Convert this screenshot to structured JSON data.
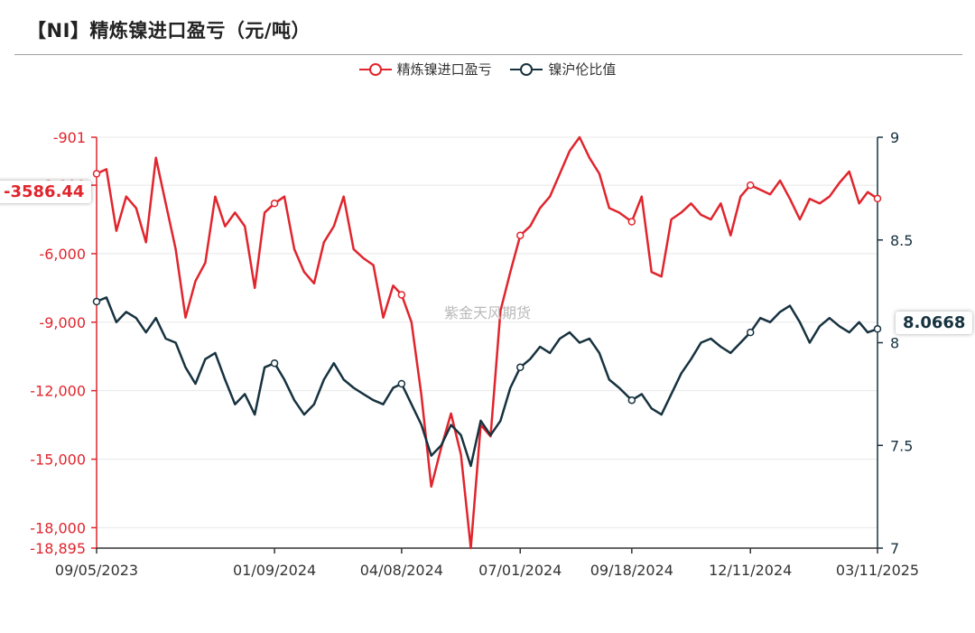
{
  "title": "【NI】精炼镍进口盈亏（元/吨）",
  "watermark": "紫金天风期货",
  "colors": {
    "profit": "#e0252d",
    "ratio": "#17323f",
    "grid": "#e8e8e8",
    "axis": "#333333"
  },
  "chart_data": {
    "type": "line",
    "x_range": [
      "2023-09-05",
      "2025-03-11"
    ],
    "x_ticks": [
      "09/05/2023",
      "01/09/2024",
      "04/08/2024",
      "07/01/2024",
      "09/18/2024",
      "12/11/2024",
      "03/11/2025"
    ],
    "y_left": {
      "min": -18895,
      "max": -901,
      "ticks": [
        -901,
        -3000,
        -6000,
        -9000,
        -12000,
        -15000,
        -18000,
        -18895
      ],
      "tick_labels": [
        "-901",
        "-3,000",
        "-6,000",
        "-9,000",
        "-12,000",
        "-15,000",
        "-18,000",
        "-18,895"
      ]
    },
    "y_right": {
      "min": 7,
      "max": 9,
      "ticks": [
        7,
        7.5,
        8,
        8.5,
        9
      ],
      "tick_labels": [
        "7",
        "7.5",
        "8",
        "8.5",
        "9"
      ]
    },
    "grid": true,
    "legend_position": "top-center",
    "series": [
      {
        "name": "精炼镍进口盈亏",
        "axis": "left",
        "color": "#e0252d",
        "current_label": "-3586.44",
        "points": [
          [
            "2023-09-05",
            -2500
          ],
          [
            "2023-09-12",
            -2300
          ],
          [
            "2023-09-19",
            -5000
          ],
          [
            "2023-09-26",
            -3500
          ],
          [
            "2023-10-03",
            -4000
          ],
          [
            "2023-10-10",
            -5500
          ],
          [
            "2023-10-17",
            -1800
          ],
          [
            "2023-10-24",
            -3800
          ],
          [
            "2023-10-31",
            -5800
          ],
          [
            "2023-11-07",
            -8800
          ],
          [
            "2023-11-14",
            -7200
          ],
          [
            "2023-11-21",
            -6400
          ],
          [
            "2023-11-28",
            -3500
          ],
          [
            "2023-12-05",
            -4800
          ],
          [
            "2023-12-12",
            -4200
          ],
          [
            "2023-12-19",
            -4800
          ],
          [
            "2023-12-26",
            -7500
          ],
          [
            "2024-01-02",
            -4200
          ],
          [
            "2024-01-09",
            -3800
          ],
          [
            "2024-01-16",
            -3500
          ],
          [
            "2024-01-23",
            -5800
          ],
          [
            "2024-01-30",
            -6800
          ],
          [
            "2024-02-06",
            -7300
          ],
          [
            "2024-02-13",
            -5500
          ],
          [
            "2024-02-20",
            -4800
          ],
          [
            "2024-02-27",
            -3500
          ],
          [
            "2024-03-05",
            -5800
          ],
          [
            "2024-03-12",
            -6200
          ],
          [
            "2024-03-19",
            -6500
          ],
          [
            "2024-03-26",
            -8800
          ],
          [
            "2024-04-02",
            -7400
          ],
          [
            "2024-04-08",
            -7800
          ],
          [
            "2024-04-15",
            -9000
          ],
          [
            "2024-04-22",
            -12200
          ],
          [
            "2024-04-29",
            -16200
          ],
          [
            "2024-05-06",
            -14500
          ],
          [
            "2024-05-13",
            -13000
          ],
          [
            "2024-05-20",
            -14800
          ],
          [
            "2024-05-27",
            -18895
          ],
          [
            "2024-06-03",
            -13500
          ],
          [
            "2024-06-10",
            -14000
          ],
          [
            "2024-06-17",
            -8500
          ],
          [
            "2024-06-24",
            -6800
          ],
          [
            "2024-07-01",
            -5200
          ],
          [
            "2024-07-08",
            -4800
          ],
          [
            "2024-07-15",
            -4000
          ],
          [
            "2024-07-22",
            -3500
          ],
          [
            "2024-07-29",
            -2500
          ],
          [
            "2024-08-05",
            -1500
          ],
          [
            "2024-08-12",
            -901
          ],
          [
            "2024-08-19",
            -1800
          ],
          [
            "2024-08-26",
            -2500
          ],
          [
            "2024-09-02",
            -4000
          ],
          [
            "2024-09-09",
            -4200
          ],
          [
            "2024-09-18",
            -4600
          ],
          [
            "2024-09-25",
            -3500
          ],
          [
            "2024-10-02",
            -6800
          ],
          [
            "2024-10-09",
            -7000
          ],
          [
            "2024-10-16",
            -4500
          ],
          [
            "2024-10-23",
            -4200
          ],
          [
            "2024-10-30",
            -3800
          ],
          [
            "2024-11-06",
            -4300
          ],
          [
            "2024-11-13",
            -4500
          ],
          [
            "2024-11-20",
            -3800
          ],
          [
            "2024-11-27",
            -5200
          ],
          [
            "2024-12-04",
            -3500
          ],
          [
            "2024-12-11",
            -3000
          ],
          [
            "2024-12-18",
            -3200
          ],
          [
            "2024-12-25",
            -3400
          ],
          [
            "2025-01-01",
            -2800
          ],
          [
            "2025-01-08",
            -3600
          ],
          [
            "2025-01-15",
            -4500
          ],
          [
            "2025-01-22",
            -3600
          ],
          [
            "2025-01-29",
            -3800
          ],
          [
            "2025-02-05",
            -3500
          ],
          [
            "2025-02-12",
            -2900
          ],
          [
            "2025-02-19",
            -2400
          ],
          [
            "2025-02-26",
            -3800
          ],
          [
            "2025-03-04",
            -3300
          ],
          [
            "2025-03-11",
            -3586.44
          ]
        ]
      },
      {
        "name": "镍沪伦比值",
        "axis": "right",
        "color": "#17323f",
        "current_label": "8.0668",
        "points": [
          [
            "2023-09-05",
            8.2
          ],
          [
            "2023-09-12",
            8.22
          ],
          [
            "2023-09-19",
            8.1
          ],
          [
            "2023-09-26",
            8.15
          ],
          [
            "2023-10-03",
            8.12
          ],
          [
            "2023-10-10",
            8.05
          ],
          [
            "2023-10-17",
            8.12
          ],
          [
            "2023-10-24",
            8.02
          ],
          [
            "2023-10-31",
            8.0
          ],
          [
            "2023-11-07",
            7.88
          ],
          [
            "2023-11-14",
            7.8
          ],
          [
            "2023-11-21",
            7.92
          ],
          [
            "2023-11-28",
            7.95
          ],
          [
            "2023-12-05",
            7.82
          ],
          [
            "2023-12-12",
            7.7
          ],
          [
            "2023-12-19",
            7.75
          ],
          [
            "2023-12-26",
            7.65
          ],
          [
            "2024-01-02",
            7.88
          ],
          [
            "2024-01-09",
            7.9
          ],
          [
            "2024-01-16",
            7.82
          ],
          [
            "2024-01-23",
            7.72
          ],
          [
            "2024-01-30",
            7.65
          ],
          [
            "2024-02-06",
            7.7
          ],
          [
            "2024-02-13",
            7.82
          ],
          [
            "2024-02-20",
            7.9
          ],
          [
            "2024-02-27",
            7.82
          ],
          [
            "2024-03-05",
            7.78
          ],
          [
            "2024-03-12",
            7.75
          ],
          [
            "2024-03-19",
            7.72
          ],
          [
            "2024-03-26",
            7.7
          ],
          [
            "2024-04-02",
            7.78
          ],
          [
            "2024-04-08",
            7.8
          ],
          [
            "2024-04-15",
            7.7
          ],
          [
            "2024-04-22",
            7.6
          ],
          [
            "2024-04-29",
            7.45
          ],
          [
            "2024-05-06",
            7.5
          ],
          [
            "2024-05-13",
            7.6
          ],
          [
            "2024-05-20",
            7.55
          ],
          [
            "2024-05-27",
            7.4
          ],
          [
            "2024-06-03",
            7.62
          ],
          [
            "2024-06-10",
            7.55
          ],
          [
            "2024-06-17",
            7.62
          ],
          [
            "2024-06-24",
            7.78
          ],
          [
            "2024-07-01",
            7.88
          ],
          [
            "2024-07-08",
            7.92
          ],
          [
            "2024-07-15",
            7.98
          ],
          [
            "2024-07-22",
            7.95
          ],
          [
            "2024-07-29",
            8.02
          ],
          [
            "2024-08-05",
            8.05
          ],
          [
            "2024-08-12",
            8.0
          ],
          [
            "2024-08-19",
            8.02
          ],
          [
            "2024-08-26",
            7.95
          ],
          [
            "2024-09-02",
            7.82
          ],
          [
            "2024-09-09",
            7.78
          ],
          [
            "2024-09-18",
            7.72
          ],
          [
            "2024-09-25",
            7.75
          ],
          [
            "2024-10-02",
            7.68
          ],
          [
            "2024-10-09",
            7.65
          ],
          [
            "2024-10-16",
            7.75
          ],
          [
            "2024-10-23",
            7.85
          ],
          [
            "2024-10-30",
            7.92
          ],
          [
            "2024-11-06",
            8.0
          ],
          [
            "2024-11-13",
            8.02
          ],
          [
            "2024-11-20",
            7.98
          ],
          [
            "2024-11-27",
            7.95
          ],
          [
            "2024-12-04",
            8.0
          ],
          [
            "2024-12-11",
            8.05
          ],
          [
            "2024-12-18",
            8.12
          ],
          [
            "2024-12-25",
            8.1
          ],
          [
            "2025-01-01",
            8.15
          ],
          [
            "2025-01-08",
            8.18
          ],
          [
            "2025-01-15",
            8.1
          ],
          [
            "2025-01-22",
            8.0
          ],
          [
            "2025-01-29",
            8.08
          ],
          [
            "2025-02-05",
            8.12
          ],
          [
            "2025-02-12",
            8.08
          ],
          [
            "2025-02-19",
            8.05
          ],
          [
            "2025-02-26",
            8.1
          ],
          [
            "2025-03-04",
            8.05
          ],
          [
            "2025-03-11",
            8.0668
          ]
        ]
      }
    ]
  }
}
